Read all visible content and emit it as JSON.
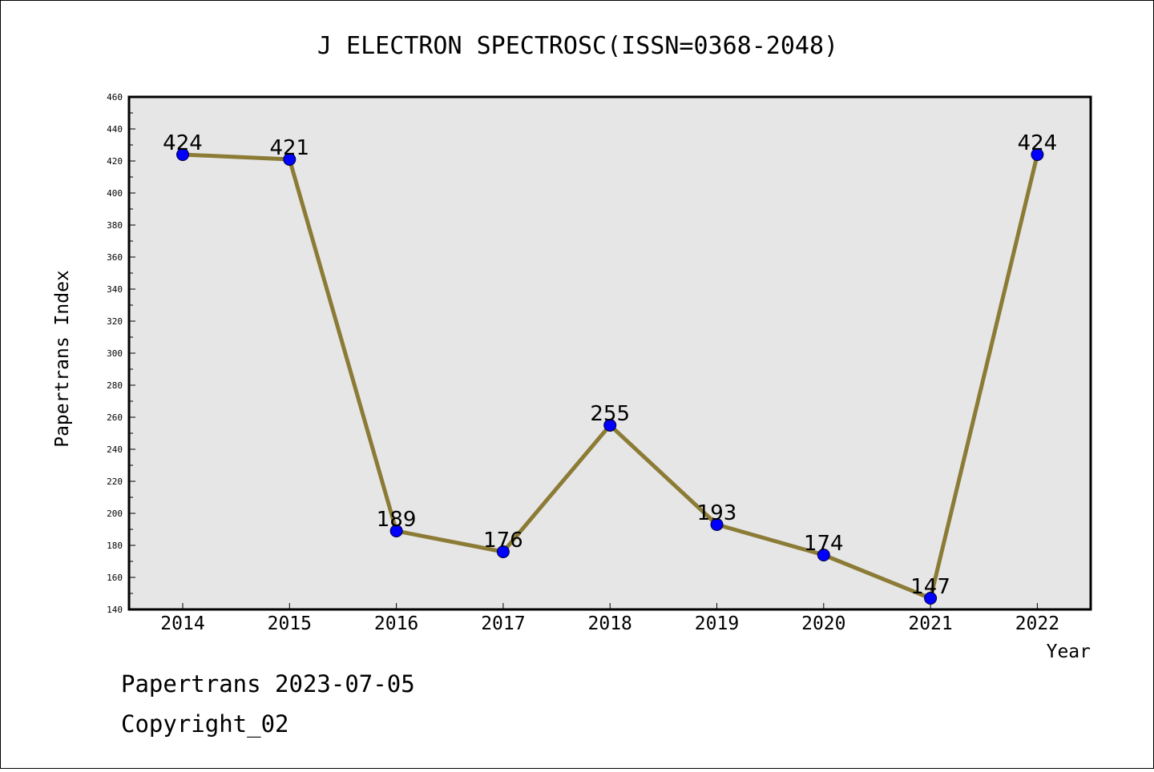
{
  "chart_data": {
    "type": "line",
    "title": "J ELECTRON SPECTROSC(ISSN=0368-2048)",
    "xlabel": "Year",
    "ylabel": "Papertrans Index",
    "categories": [
      "2014",
      "2015",
      "2016",
      "2017",
      "2018",
      "2019",
      "2020",
      "2021",
      "2022"
    ],
    "series": [
      {
        "values": [
          424,
          421,
          189,
          176,
          255,
          193,
          174,
          147,
          424
        ]
      }
    ],
    "data_labels": [
      "424",
      "421",
      "189",
      "176",
      "255",
      "193",
      "174",
      "147",
      "424"
    ],
    "ylim": [
      140,
      460
    ],
    "yticks": [
      "140",
      "160",
      "180",
      "200",
      "220",
      "240",
      "260",
      "280",
      "300",
      "320",
      "340",
      "360",
      "380",
      "400",
      "420",
      "440",
      "460"
    ],
    "grid": false,
    "plot_background": "#e6e6e6",
    "line_color": "#8b7b35",
    "marker_color": "#0000ff"
  },
  "footer": {
    "line1": "Papertrans 2023-07-05",
    "line2": "Copyright_02"
  }
}
